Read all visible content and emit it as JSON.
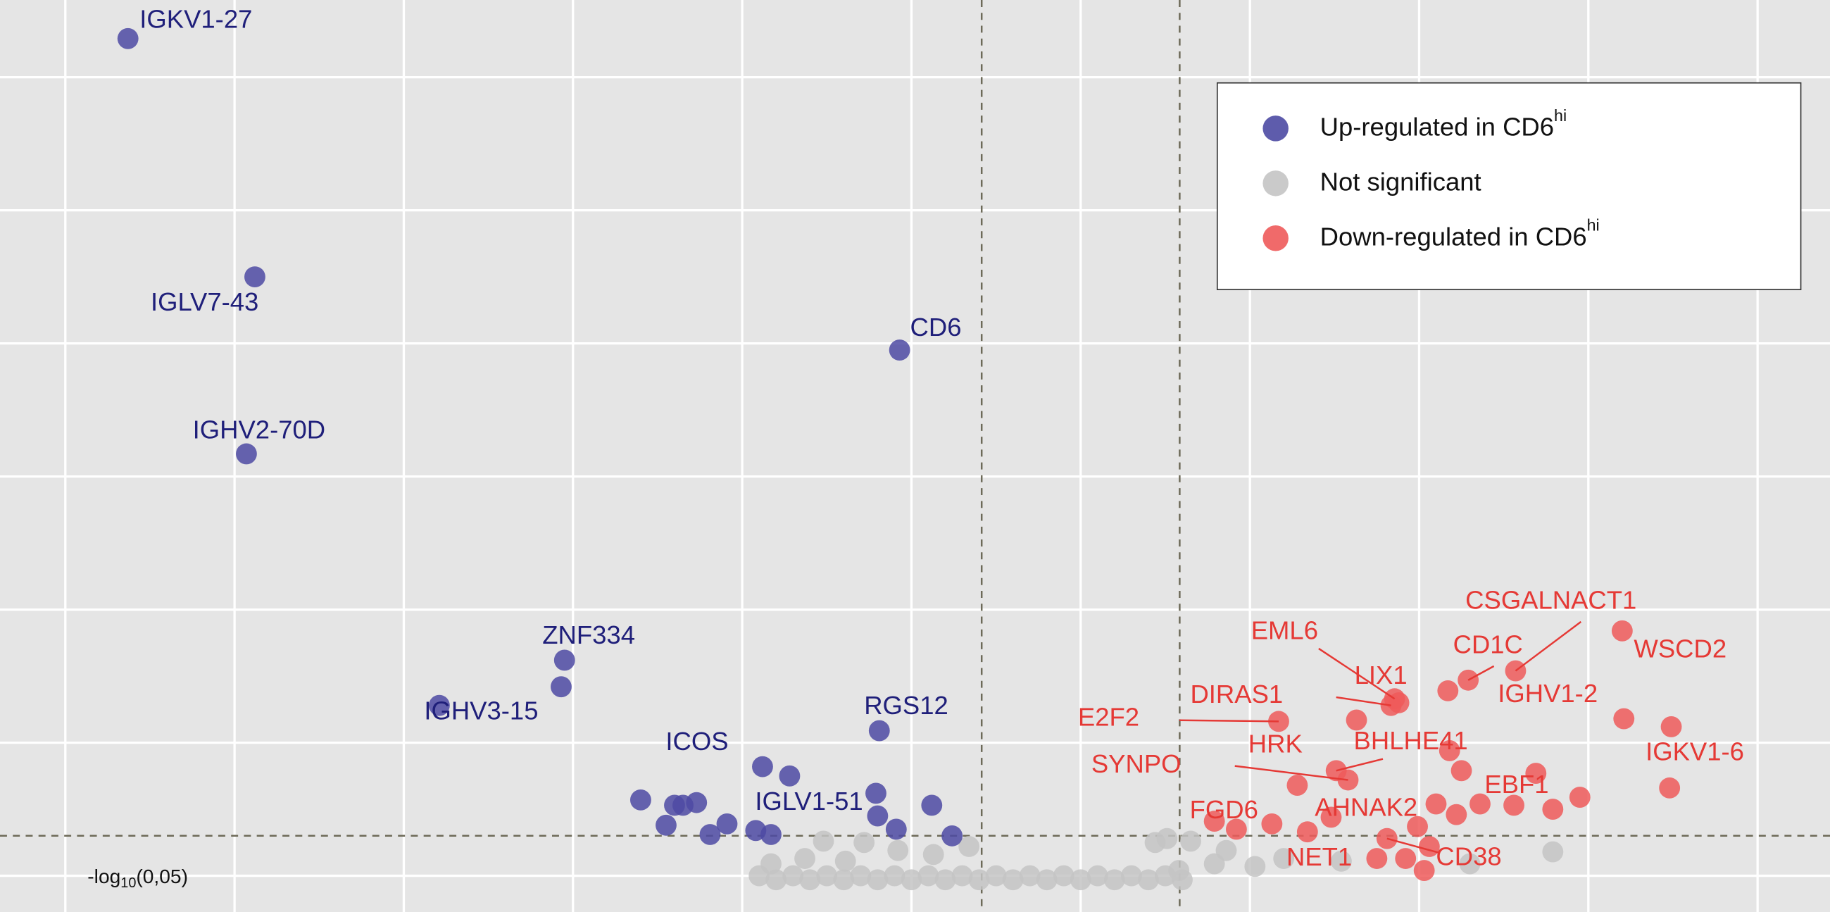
{
  "chart_data": {
    "type": "scatter",
    "xlim": [
      -6.386,
      4.428
    ],
    "ylim": [
      0.728,
      7.58
    ],
    "xticks": [
      -6,
      -5,
      -4,
      -3,
      -2,
      -1,
      0,
      1,
      2,
      3,
      4
    ],
    "yticks": [
      1,
      2,
      3,
      4,
      5,
      6,
      7
    ],
    "grid": true,
    "hline": 1.301,
    "vlines": [
      -0.585,
      0.585
    ],
    "threshold_label": {
      "text": "-log",
      "sub": "10",
      "suffix": "(0,05)"
    },
    "legend": "upper right",
    "series": [
      {
        "name": "Up-regulated in CD6",
        "name_sup": "hi",
        "color": "#4d4aa3",
        "label_color": "#1f1f7a",
        "x": [
          -5.63,
          -4.88,
          -1.07,
          -4.93,
          -3.05,
          -3.07,
          -3.79,
          -1.19,
          -1.88,
          -1.72,
          -2.6,
          -2.4,
          -2.27,
          -1.21,
          -0.88,
          -1.2,
          -2.45,
          -2.09,
          -2.19,
          -1.92,
          -1.83,
          -1.09,
          -0.76,
          -2.35
        ],
        "values": [
          7.29,
          5.5,
          4.95,
          4.17,
          2.62,
          2.42,
          2.28,
          2.09,
          1.82,
          1.75,
          1.57,
          1.53,
          1.55,
          1.62,
          1.53,
          1.45,
          1.38,
          1.39,
          1.31,
          1.34,
          1.31,
          1.35,
          1.3,
          1.53
        ],
        "point_labels": [
          "IGKV1-27",
          "IGLV7-43",
          "CD6",
          "IGHV2-70D",
          "ZNF334",
          null,
          "IGHV3-15",
          "RGS12",
          "ICOS",
          null,
          null,
          null,
          null,
          null,
          null,
          "IGLV1-51",
          null,
          null,
          null,
          null,
          null,
          null,
          null,
          null
        ]
      },
      {
        "name": "Not significant",
        "color": "#c4c4c4",
        "x": [
          -1.9,
          -1.8,
          -1.7,
          -1.6,
          -1.5,
          -1.4,
          -1.3,
          -1.2,
          -1.1,
          -1.0,
          -0.9,
          -0.8,
          -0.7,
          -0.6,
          -0.5,
          -0.4,
          -0.3,
          -0.2,
          -0.1,
          0.0,
          0.1,
          0.2,
          0.3,
          0.4,
          0.5,
          0.6,
          -1.52,
          -1.28,
          -1.08,
          -0.87,
          -0.66,
          0.44,
          0.51,
          0.65,
          0.86,
          1.2,
          1.54,
          2.3,
          2.79,
          -1.83,
          -1.63,
          0.58,
          0.79,
          1.03,
          -1.39
        ],
        "values": [
          1.0,
          0.97,
          1.0,
          0.97,
          1.0,
          0.97,
          1.0,
          0.97,
          1.0,
          0.97,
          1.0,
          0.97,
          1.0,
          0.97,
          1.0,
          0.97,
          1.0,
          0.97,
          1.0,
          0.97,
          1.0,
          0.97,
          1.0,
          0.97,
          1.0,
          0.97,
          1.26,
          1.25,
          1.19,
          1.16,
          1.22,
          1.25,
          1.28,
          1.26,
          1.19,
          1.13,
          1.11,
          1.09,
          1.18,
          1.09,
          1.13,
          1.04,
          1.09,
          1.07,
          1.11
        ]
      },
      {
        "name": "Down-regulated in CD6",
        "name_sup": "hi",
        "color": "#ee5a5a",
        "label_color": "#e53935",
        "x": [
          3.2,
          2.57,
          2.29,
          2.17,
          1.88,
          1.855,
          1.834,
          1.63,
          1.17,
          3.21,
          3.49,
          2.18,
          2.25,
          2.69,
          1.51,
          1.58,
          1.28,
          3.48,
          2.95,
          2.79,
          2.56,
          2.36,
          2.1,
          2.22,
          1.99,
          1.81,
          1.48,
          1.34,
          1.13,
          0.92,
          0.79,
          2.06,
          1.92,
          2.03,
          1.75
        ],
        "values": [
          2.84,
          2.54,
          2.47,
          2.39,
          2.3,
          2.33,
          2.28,
          2.17,
          2.16,
          2.18,
          2.12,
          1.94,
          1.79,
          1.77,
          1.79,
          1.72,
          1.68,
          1.66,
          1.59,
          1.5,
          1.53,
          1.54,
          1.54,
          1.46,
          1.37,
          1.28,
          1.44,
          1.33,
          1.39,
          1.35,
          1.41,
          1.22,
          1.13,
          1.04,
          1.13
        ],
        "point_labels": [
          "WSCD2",
          "CSGALNACT1",
          "CD1C",
          null,
          "LIX1",
          "EML6",
          "DIRAS1",
          null,
          "E2F2",
          "IGHV1-2",
          "IGKV1-6",
          null,
          null,
          "EBF1",
          "BHLHE41",
          "SYNPO",
          "HRK",
          null,
          null,
          null,
          null,
          null,
          null,
          null,
          null,
          "CD38",
          "AHNAK2",
          "NET1",
          null,
          "FGD6",
          null,
          null,
          null,
          null,
          null
        ]
      }
    ]
  }
}
